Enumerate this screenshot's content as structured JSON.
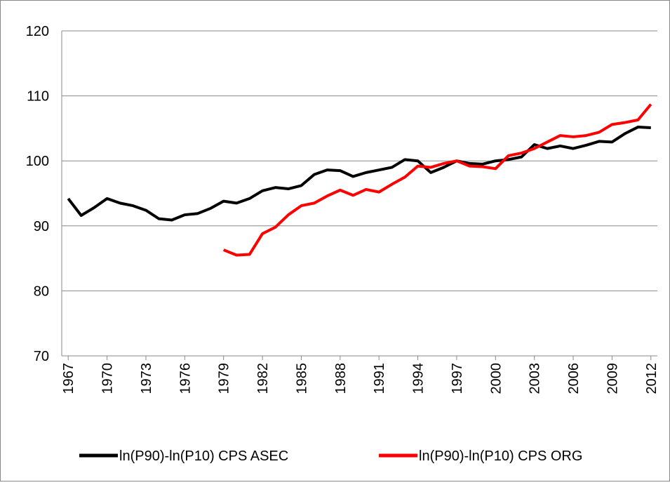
{
  "chart_data": {
    "type": "line",
    "x": [
      1967,
      1968,
      1969,
      1970,
      1971,
      1972,
      1973,
      1974,
      1975,
      1976,
      1977,
      1978,
      1979,
      1980,
      1981,
      1982,
      1983,
      1984,
      1985,
      1986,
      1987,
      1988,
      1989,
      1990,
      1991,
      1992,
      1993,
      1994,
      1995,
      1996,
      1997,
      1998,
      1999,
      2000,
      2001,
      2002,
      2003,
      2004,
      2005,
      2006,
      2007,
      2008,
      2009,
      2010,
      2011,
      2012
    ],
    "series": [
      {
        "name": "ln(P90)-ln(P10) CPS ASEC",
        "color": "#000000",
        "values": [
          94.2,
          91.6,
          92.8,
          94.2,
          93.5,
          93.1,
          92.4,
          91.1,
          90.9,
          91.7,
          91.9,
          92.7,
          93.8,
          93.5,
          94.2,
          95.4,
          95.9,
          95.7,
          96.2,
          97.9,
          98.6,
          98.5,
          97.6,
          98.2,
          98.6,
          99.0,
          100.2,
          100.0,
          98.2,
          99.0,
          100.0,
          99.6,
          99.5,
          100.0,
          100.2,
          100.6,
          102.5,
          101.9,
          102.3,
          101.9,
          102.4,
          103.0,
          102.9,
          104.2,
          105.2,
          105.1
        ]
      },
      {
        "name": "ln(P90)-ln(P10) CPS ORG",
        "color": "#ff0000",
        "values": [
          null,
          null,
          null,
          null,
          null,
          null,
          null,
          null,
          null,
          null,
          null,
          null,
          86.3,
          85.5,
          85.6,
          88.8,
          89.8,
          91.7,
          93.1,
          93.5,
          94.6,
          95.5,
          94.7,
          95.6,
          95.2,
          96.4,
          97.5,
          99.2,
          99.0,
          99.6,
          100.0,
          99.2,
          99.1,
          98.8,
          100.8,
          101.2,
          101.9,
          102.9,
          103.9,
          103.7,
          103.9,
          104.4,
          105.6,
          105.9,
          106.3,
          108.7
        ]
      }
    ],
    "xlim": [
      1966.5,
      2012.5
    ],
    "xticks": [
      1967,
      1970,
      1973,
      1976,
      1979,
      1982,
      1985,
      1988,
      1991,
      1994,
      1997,
      2000,
      2003,
      2006,
      2009,
      2012
    ],
    "ylim": [
      70,
      120
    ],
    "yticks": [
      70,
      80,
      90,
      100,
      110,
      120
    ],
    "grid": true,
    "legend": "bottom"
  }
}
